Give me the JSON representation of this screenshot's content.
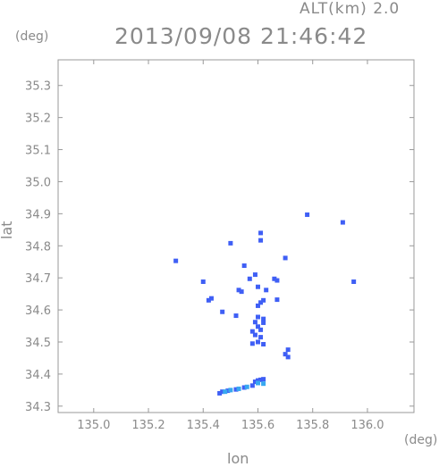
{
  "header": {
    "altitude": "ALT(km) 2.0",
    "datetime": "2013/09/08 21:46:42"
  },
  "chart_data": {
    "type": "scatter",
    "title": "2013/09/08 21:46:42",
    "subtitle": "ALT(km) 2.0",
    "xlabel": "lon",
    "ylabel": "lat",
    "x_unit": "(deg)",
    "y_unit": "(deg)",
    "xlim": [
      134.87,
      136.17
    ],
    "ylim": [
      34.28,
      35.38
    ],
    "xticks": [
      "135.0",
      "135.2",
      "135.4",
      "135.6",
      "135.8",
      "136.0"
    ],
    "yticks": [
      "34.3",
      "34.4",
      "34.5",
      "34.6",
      "34.7",
      "34.8",
      "34.9",
      "35.0",
      "35.1",
      "35.2",
      "35.3"
    ],
    "grid": false,
    "colors": {
      "blue": "#3f5ff5",
      "light_blue": "#38a8f0",
      "axis": "#999999"
    },
    "series": [
      {
        "color_key": "blue",
        "points": [
          [
            135.91,
            34.873
          ],
          [
            135.78,
            34.897
          ],
          [
            135.61,
            34.84
          ],
          [
            135.61,
            34.817
          ],
          [
            135.5,
            34.808
          ],
          [
            135.3,
            34.753
          ],
          [
            135.55,
            34.738
          ],
          [
            135.7,
            34.762
          ],
          [
            135.59,
            34.71
          ],
          [
            135.4,
            34.688
          ],
          [
            135.57,
            34.697
          ],
          [
            135.66,
            34.697
          ],
          [
            135.67,
            34.692
          ],
          [
            135.6,
            34.672
          ],
          [
            135.63,
            34.662
          ],
          [
            135.53,
            34.662
          ],
          [
            135.54,
            34.657
          ],
          [
            135.43,
            34.636
          ],
          [
            135.42,
            34.63
          ],
          [
            135.67,
            34.632
          ],
          [
            135.62,
            34.63
          ],
          [
            135.61,
            34.623
          ],
          [
            135.6,
            34.613
          ],
          [
            135.47,
            34.594
          ],
          [
            135.52,
            34.582
          ],
          [
            135.6,
            34.578
          ],
          [
            135.62,
            34.572
          ],
          [
            135.62,
            34.56
          ],
          [
            135.59,
            34.562
          ],
          [
            135.6,
            34.548
          ],
          [
            135.61,
            34.538
          ],
          [
            135.58,
            34.533
          ],
          [
            135.59,
            34.522
          ],
          [
            135.61,
            34.515
          ],
          [
            135.6,
            34.5
          ],
          [
            135.58,
            34.495
          ],
          [
            135.62,
            34.493
          ],
          [
            135.71,
            34.476
          ],
          [
            135.7,
            34.462
          ],
          [
            135.71,
            34.453
          ],
          [
            135.95,
            34.688
          ],
          [
            135.61,
            34.382
          ],
          [
            135.6,
            34.38
          ],
          [
            135.62,
            34.384
          ],
          [
            135.59,
            34.376
          ],
          [
            135.47,
            34.345
          ],
          [
            135.46,
            34.34
          ],
          [
            135.49,
            34.348
          ],
          [
            135.52,
            34.352
          ],
          [
            135.55,
            34.358
          ],
          [
            135.58,
            34.364
          ]
        ]
      },
      {
        "color_key": "light_blue",
        "points": [
          [
            135.5,
            34.35
          ],
          [
            135.53,
            34.354
          ],
          [
            135.56,
            34.36
          ],
          [
            135.6,
            34.372
          ],
          [
            135.62,
            34.37
          ],
          [
            135.48,
            34.345
          ]
        ]
      }
    ]
  }
}
